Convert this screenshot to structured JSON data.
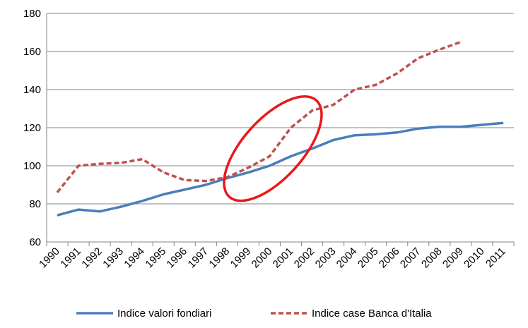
{
  "chart_data": {
    "type": "line",
    "title": "",
    "xlabel": "",
    "ylabel": "",
    "categories": [
      "1990",
      "1991",
      "1992",
      "1993",
      "1994",
      "1995",
      "1996",
      "1997",
      "1998",
      "1999",
      "2000",
      "2001",
      "2002",
      "2003",
      "2004",
      "2005",
      "2006",
      "2007",
      "2008",
      "2009",
      "2010",
      "2011"
    ],
    "ylim": [
      60,
      180
    ],
    "yticks": [
      60,
      80,
      100,
      120,
      140,
      160,
      180
    ],
    "grid": "horizontal",
    "legend_position": "bottom",
    "series": [
      {
        "name": "Indice valori fondiari",
        "color": "#4A7EBB",
        "style": "solid",
        "values": [
          74,
          77,
          76,
          78.5,
          81.5,
          85,
          87.5,
          90,
          93.5,
          96.5,
          100,
          105,
          109,
          113.5,
          116,
          116.5,
          117.5,
          119.5,
          120.5,
          120.5,
          121.5,
          122.5
        ]
      },
      {
        "name": "Indice case Banca d'Italia",
        "color": "#C0504D",
        "style": "dashed",
        "values": [
          86,
          100,
          101,
          101.5,
          103.5,
          96.5,
          92.5,
          92,
          94,
          99,
          105,
          120,
          129,
          132,
          140,
          142.5,
          148.5,
          156.5,
          161,
          165,
          null,
          null
        ]
      }
    ],
    "annotations": [
      {
        "type": "ellipse",
        "color": "#E8191A",
        "center": [
          "2000",
          109
        ],
        "note": ""
      }
    ]
  }
}
